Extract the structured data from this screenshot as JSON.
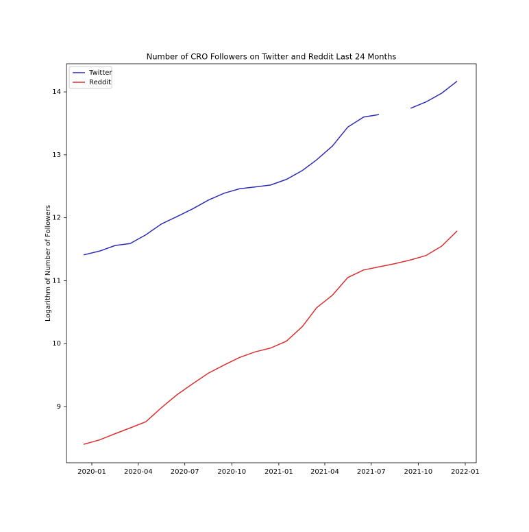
{
  "chart_data": {
    "type": "line",
    "title": "Number of CRO Followers on Twitter and Reddit Last 24 Months",
    "y_label": "Logarithm of Number of Followers",
    "x": [
      "2019-12",
      "2020-01",
      "2020-02",
      "2020-03",
      "2020-04",
      "2020-05",
      "2020-06",
      "2020-07",
      "2020-08",
      "2020-09",
      "2020-10",
      "2020-11",
      "2020-12",
      "2021-01",
      "2021-02",
      "2021-03",
      "2021-04",
      "2021-05",
      "2021-06",
      "2021-07",
      "2021-08",
      "2021-09",
      "2021-10",
      "2021-11",
      "2021-12"
    ],
    "series": [
      {
        "name": "Twitter",
        "color": "#2c2cb8",
        "values": [
          11.41,
          11.47,
          11.56,
          11.59,
          11.73,
          11.9,
          12.02,
          12.14,
          12.28,
          12.39,
          12.46,
          12.49,
          12.52,
          12.61,
          12.75,
          12.92,
          13.14,
          13.44,
          13.6,
          13.64,
          null,
          13.74,
          13.84,
          13.98,
          14.17
        ]
      },
      {
        "name": "Reddit",
        "color": "#d93030",
        "values": [
          8.4,
          8.47,
          8.57,
          8.66,
          8.76,
          8.98,
          9.19,
          9.36,
          9.53,
          9.66,
          9.78,
          9.87,
          9.93,
          10.04,
          10.27,
          10.57,
          10.77,
          11.05,
          11.17,
          11.22,
          11.27,
          11.33,
          11.4,
          11.55,
          11.79
        ]
      }
    ],
    "xticks": [
      "2020-01",
      "2020-04",
      "2020-07",
      "2020-10",
      "2021-01",
      "2021-04",
      "2021-07",
      "2021-10",
      "2022-01"
    ],
    "ylim": [
      8.107,
      14.447
    ],
    "yticks": [
      9,
      10,
      11,
      12,
      13,
      14
    ],
    "legend": "upper left"
  }
}
